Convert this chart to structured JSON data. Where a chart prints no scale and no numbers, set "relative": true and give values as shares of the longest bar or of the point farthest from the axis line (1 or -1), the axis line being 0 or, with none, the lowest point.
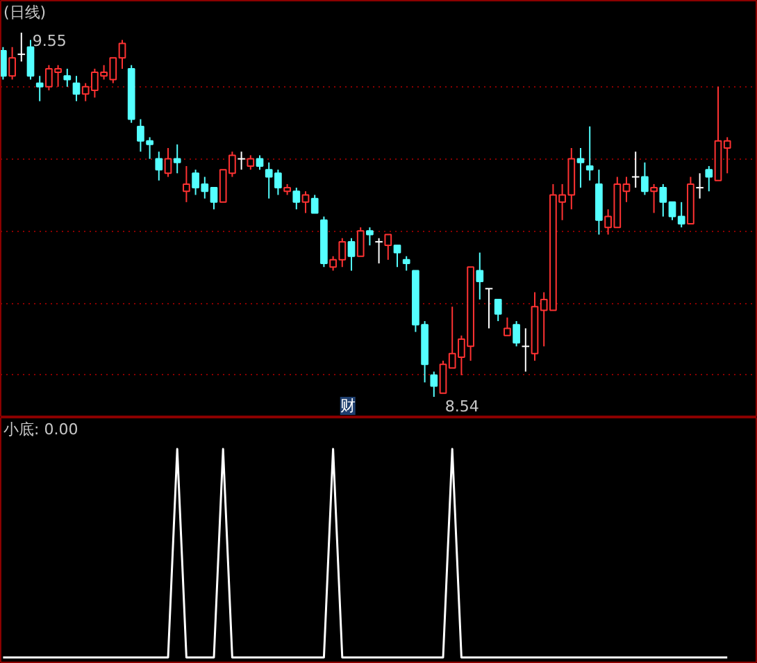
{
  "chart_data": [
    {
      "type": "candlestick",
      "title": "(日线)",
      "categories": [
        null,
        null,
        null,
        null,
        null,
        null,
        null,
        null,
        null,
        null,
        null,
        null,
        null,
        null,
        null,
        null,
        null,
        null,
        null,
        null,
        null,
        null,
        null,
        null,
        null,
        null,
        null,
        null,
        null,
        null,
        null,
        null,
        null,
        null,
        null,
        null,
        null,
        null,
        null,
        null,
        null,
        null,
        null,
        null,
        null,
        null,
        null,
        null,
        null,
        null,
        null,
        null,
        null,
        null,
        null,
        null,
        null,
        null,
        null,
        null,
        null,
        null,
        null,
        null,
        null,
        null,
        null,
        null,
        null,
        null,
        null,
        null,
        null,
        null,
        null,
        null,
        null,
        null,
        null,
        null
      ],
      "ohlc": [
        [
          9.5,
          9.51,
          9.42,
          9.43
        ],
        [
          9.43,
          9.51,
          9.42,
          9.48
        ],
        [
          9.49,
          9.55,
          9.47,
          9.49
        ],
        [
          9.51,
          9.53,
          9.42,
          9.43
        ],
        [
          9.41,
          9.43,
          9.36,
          9.4
        ],
        [
          9.4,
          9.46,
          9.39,
          9.45
        ],
        [
          9.44,
          9.46,
          9.4,
          9.45
        ],
        [
          9.43,
          9.45,
          9.4,
          9.42
        ],
        [
          9.41,
          9.43,
          9.36,
          9.38
        ],
        [
          9.38,
          9.41,
          9.36,
          9.4
        ],
        [
          9.39,
          9.45,
          9.37,
          9.44
        ],
        [
          9.43,
          9.46,
          9.42,
          9.44
        ],
        [
          9.42,
          9.48,
          9.41,
          9.48
        ],
        [
          9.48,
          9.53,
          9.45,
          9.52
        ],
        [
          9.45,
          9.46,
          9.3,
          9.31
        ],
        [
          9.29,
          9.31,
          9.22,
          9.25
        ],
        [
          9.25,
          9.26,
          9.2,
          9.24
        ],
        [
          9.2,
          9.22,
          9.14,
          9.17
        ],
        [
          9.16,
          9.23,
          9.15,
          9.2
        ],
        [
          9.2,
          9.24,
          9.16,
          9.19
        ],
        [
          9.11,
          9.18,
          9.08,
          9.13
        ],
        [
          9.16,
          9.17,
          9.1,
          9.12
        ],
        [
          9.13,
          9.15,
          9.09,
          9.11
        ],
        [
          9.12,
          9.12,
          9.06,
          9.08
        ],
        [
          9.08,
          9.17,
          9.08,
          9.17
        ],
        [
          9.16,
          9.22,
          9.15,
          9.21
        ],
        [
          9.2,
          9.22,
          9.17,
          9.2
        ],
        [
          9.18,
          9.21,
          9.17,
          9.2
        ],
        [
          9.2,
          9.21,
          9.17,
          9.18
        ],
        [
          9.17,
          9.19,
          9.09,
          9.15
        ],
        [
          9.16,
          9.17,
          9.1,
          9.12
        ],
        [
          9.11,
          9.13,
          9.1,
          9.12
        ],
        [
          9.11,
          9.12,
          9.06,
          9.08
        ],
        [
          9.08,
          9.11,
          9.05,
          9.1
        ],
        [
          9.09,
          9.1,
          9.05,
          9.05
        ],
        [
          9.03,
          9.04,
          8.9,
          8.91
        ],
        [
          8.9,
          8.93,
          8.89,
          8.92
        ],
        [
          8.92,
          8.98,
          8.9,
          8.97
        ],
        [
          8.97,
          8.98,
          8.89,
          8.93
        ],
        [
          8.93,
          9.01,
          8.93,
          9.0
        ],
        [
          9.0,
          9.01,
          8.96,
          8.99
        ],
        [
          8.97,
          8.98,
          8.91,
          8.97
        ],
        [
          8.96,
          8.99,
          8.92,
          8.99
        ],
        [
          8.96,
          8.96,
          8.9,
          8.94
        ],
        [
          8.92,
          8.93,
          8.89,
          8.91
        ],
        [
          8.89,
          8.89,
          8.72,
          8.74
        ],
        [
          8.74,
          8.75,
          8.58,
          8.63
        ],
        [
          8.6,
          8.61,
          8.54,
          8.57
        ],
        [
          8.55,
          8.64,
          8.55,
          8.63
        ],
        [
          8.62,
          8.79,
          8.62,
          8.66
        ],
        [
          8.65,
          8.71,
          8.6,
          8.7
        ],
        [
          8.68,
          8.9,
          8.64,
          8.9
        ],
        [
          8.89,
          8.94,
          8.81,
          8.86
        ],
        [
          8.84,
          8.84,
          8.73,
          8.84
        ],
        [
          8.81,
          8.81,
          8.75,
          8.77
        ],
        [
          8.71,
          8.76,
          8.71,
          8.73
        ],
        [
          8.74,
          8.75,
          8.68,
          8.69
        ],
        [
          8.68,
          8.73,
          8.61,
          8.68
        ],
        [
          8.66,
          8.83,
          8.64,
          8.79
        ],
        [
          8.78,
          8.83,
          8.68,
          8.81
        ],
        [
          8.78,
          9.13,
          8.78,
          9.1
        ],
        [
          9.08,
          9.13,
          9.03,
          9.1
        ],
        [
          9.1,
          9.23,
          9.06,
          9.2
        ],
        [
          9.2,
          9.23,
          9.12,
          9.19
        ],
        [
          9.18,
          9.29,
          9.14,
          9.17
        ],
        [
          9.13,
          9.17,
          8.99,
          9.03
        ],
        [
          9.01,
          9.06,
          8.99,
          9.04
        ],
        [
          9.01,
          9.15,
          9.01,
          9.13
        ],
        [
          9.11,
          9.15,
          9.08,
          9.13
        ],
        [
          9.15,
          9.22,
          9.12,
          9.15
        ],
        [
          9.15,
          9.19,
          9.1,
          9.11
        ],
        [
          9.11,
          9.13,
          9.05,
          9.12
        ],
        [
          9.12,
          9.13,
          9.04,
          9.08
        ],
        [
          9.08,
          9.08,
          9.03,
          9.04
        ],
        [
          9.04,
          9.08,
          9.01,
          9.02
        ],
        [
          9.02,
          9.15,
          9.02,
          9.13
        ],
        [
          9.12,
          9.16,
          9.09,
          9.12
        ],
        [
          9.17,
          9.18,
          9.11,
          9.15
        ],
        [
          9.14,
          9.4,
          9.14,
          9.25
        ],
        [
          9.23,
          9.26,
          9.16,
          9.25
        ]
      ],
      "colors": [
        "#54ffff",
        "#ff3232",
        "#ffffff",
        "#54ffff",
        "#54ffff",
        "#ff3232",
        "#ff3232",
        "#54ffff",
        "#54ffff",
        "#ff3232",
        "#ff3232",
        "#ff3232",
        "#ff3232",
        "#ff3232",
        "#54ffff",
        "#54ffff",
        "#54ffff",
        "#54ffff",
        "#ff3232",
        "#54ffff",
        "#ff3232",
        "#54ffff",
        "#54ffff",
        "#54ffff",
        "#ff3232",
        "#ff3232",
        "#ffffff",
        "#ff3232",
        "#54ffff",
        "#54ffff",
        "#54ffff",
        "#ff3232",
        "#54ffff",
        "#ff3232",
        "#54ffff",
        "#54ffff",
        "#ff3232",
        "#ff3232",
        "#54ffff",
        "#ff3232",
        "#54ffff",
        "#ffffff",
        "#ff3232",
        "#54ffff",
        "#54ffff",
        "#54ffff",
        "#54ffff",
        "#54ffff",
        "#ff3232",
        "#ff3232",
        "#ff3232",
        "#ff3232",
        "#54ffff",
        "#ffffff",
        "#54ffff",
        "#ff3232",
        "#54ffff",
        "#ffffff",
        "#ff3232",
        "#ff3232",
        "#ff3232",
        "#ff3232",
        "#ff3232",
        "#54ffff",
        "#54ffff",
        "#54ffff",
        "#ff3232",
        "#ff3232",
        "#ff3232",
        "#ffffff",
        "#54ffff",
        "#ff3232",
        "#54ffff",
        "#54ffff",
        "#54ffff",
        "#ff3232",
        "#ffffff",
        "#54ffff",
        "#ff3232",
        "#ff3232"
      ],
      "annotations": [
        "9.55",
        "8.54",
        "财"
      ],
      "yticks": [
        {
          "value": 9.4,
          "label": null
        },
        {
          "value": 9.2,
          "label": null
        },
        {
          "value": 9.0,
          "label": null
        },
        {
          "value": 8.8,
          "label": null
        },
        {
          "value": 8.6,
          "label": null
        }
      ],
      "grid": "y"
    },
    {
      "type": "line",
      "title": "小底: 0.00",
      "relative": true,
      "categories": [
        null,
        null,
        null,
        null,
        null,
        null,
        null,
        null,
        null,
        null,
        null,
        null,
        null,
        null,
        null,
        null,
        null,
        null,
        null,
        null,
        null,
        null,
        null,
        null,
        null,
        null,
        null,
        null,
        null,
        null,
        null,
        null,
        null,
        null,
        null,
        null,
        null,
        null,
        null,
        null,
        null,
        null,
        null,
        null,
        null,
        null,
        null,
        null,
        null,
        null,
        null,
        null,
        null,
        null,
        null,
        null,
        null,
        null,
        null,
        null,
        null,
        null,
        null,
        null,
        null,
        null,
        null,
        null,
        null,
        null,
        null,
        null,
        null,
        null,
        null,
        null,
        null,
        null,
        null,
        null
      ],
      "series": [
        {
          "color": "#ffffff",
          "values": [
            0,
            0,
            0,
            0,
            0,
            0,
            0,
            0,
            0,
            0,
            0,
            0,
            0,
            0,
            0,
            0,
            0,
            0,
            0,
            1,
            0,
            0,
            0,
            0,
            1,
            0,
            0,
            0,
            0,
            0,
            0,
            0,
            0,
            0,
            0,
            0,
            1,
            0,
            0,
            0,
            0,
            0,
            0,
            0,
            0,
            0,
            0,
            0,
            0,
            1,
            0,
            0,
            0,
            0,
            0,
            0,
            0,
            0,
            0,
            0,
            0,
            0,
            0,
            0,
            0,
            0,
            0,
            0,
            0,
            0,
            0,
            0,
            0,
            0,
            0,
            0,
            0,
            0,
            0,
            0
          ]
        }
      ],
      "grid": false
    }
  ]
}
